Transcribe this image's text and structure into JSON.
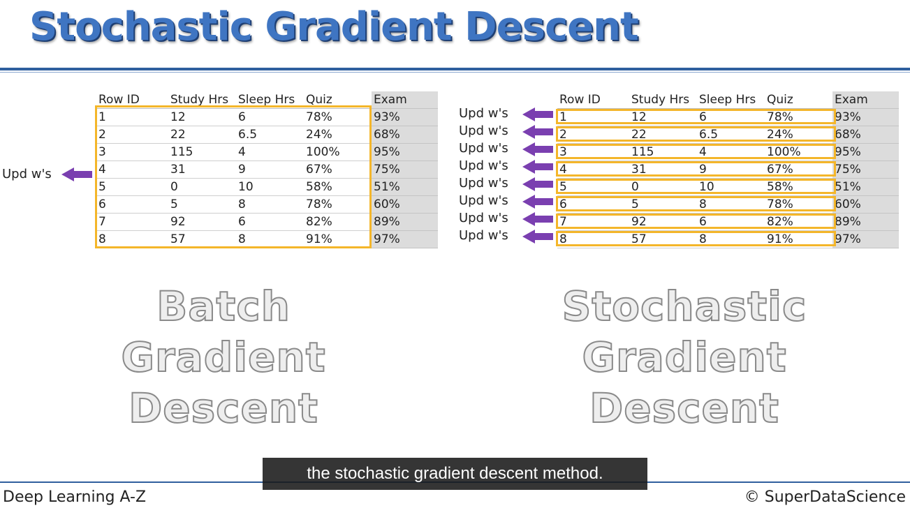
{
  "slide": {
    "title": "Stochastic Gradient Descent",
    "footer_left": "Deep Learning A-Z",
    "footer_right": "© SuperDataScience",
    "caption": "the stochastic gradient descent method.",
    "accent_color": "#3f75c2",
    "highlight_color": "#f4b62a",
    "arrow_color": "#7a3fb0"
  },
  "table": {
    "headers": [
      "Row ID",
      "Study Hrs",
      "Sleep Hrs",
      "Quiz",
      "Exam"
    ],
    "rows": [
      [
        "1",
        "12",
        "6",
        "78%",
        "93%"
      ],
      [
        "2",
        "22",
        "6.5",
        "24%",
        "68%"
      ],
      [
        "3",
        "115",
        "4",
        "100%",
        "95%"
      ],
      [
        "4",
        "31",
        "9",
        "67%",
        "75%"
      ],
      [
        "5",
        "0",
        "10",
        "58%",
        "51%"
      ],
      [
        "6",
        "5",
        "8",
        "78%",
        "60%"
      ],
      [
        "7",
        "92",
        "6",
        "82%",
        "89%"
      ],
      [
        "8",
        "57",
        "8",
        "91%",
        "97%"
      ]
    ]
  },
  "batch": {
    "update_label": "Upd w's",
    "line1": "Batch",
    "line2": "Gradient",
    "line3": "Descent"
  },
  "stochastic": {
    "update_labels": [
      "Upd w's",
      "Upd w's",
      "Upd w's",
      "Upd w's",
      "Upd w's",
      "Upd w's",
      "Upd w's",
      "Upd w's"
    ],
    "line1": "Stochastic",
    "line2": "Gradient",
    "line3": "Descent"
  }
}
